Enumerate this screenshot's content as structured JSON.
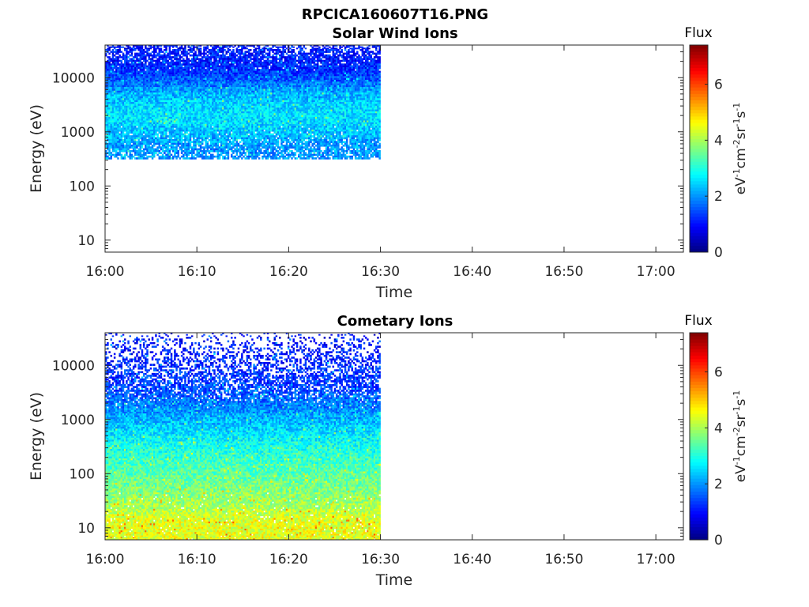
{
  "figure": {
    "title": "RPCICA160607T16.PNG"
  },
  "chart_data": [
    {
      "type": "heatmap",
      "title": "Solar Wind Ions",
      "xlabel": "Time",
      "ylabel": "Energy (eV)",
      "x_ticks": [
        "16:00",
        "16:10",
        "16:20",
        "16:30",
        "16:40",
        "16:50",
        "17:00"
      ],
      "y_ticks": [
        "10",
        "100",
        "1000",
        "10000"
      ],
      "y_tick_values": [
        10,
        100,
        1000,
        10000
      ],
      "xlim": [
        "16:00",
        "17:03"
      ],
      "ylim": [
        6,
        40000
      ],
      "yscale": "log",
      "data_time_range": [
        "16:00",
        "16:30"
      ],
      "colorbar": {
        "title": "Flux",
        "ticks": [
          "0",
          "2",
          "4",
          "6"
        ],
        "tick_values": [
          0,
          2,
          4,
          6
        ],
        "range": [
          0,
          7.4
        ],
        "colormap": "jet"
      },
      "rows": [
        {
          "energy_eV": 38000,
          "flux": 1.0,
          "fill": 0.6
        },
        {
          "energy_eV": 30000,
          "flux": 1.05,
          "fill": 0.7
        },
        {
          "energy_eV": 24000,
          "flux": 1.1,
          "fill": 0.82
        },
        {
          "energy_eV": 19000,
          "flux": 1.15,
          "fill": 0.9
        },
        {
          "energy_eV": 15000,
          "flux": 1.25,
          "fill": 0.96
        },
        {
          "energy_eV": 12000,
          "flux": 1.35,
          "fill": 1.0
        },
        {
          "energy_eV": 9500,
          "flux": 1.55,
          "fill": 1.0
        },
        {
          "energy_eV": 7500,
          "flux": 1.8,
          "fill": 1.0
        },
        {
          "energy_eV": 6000,
          "flux": 2.05,
          "fill": 1.0
        },
        {
          "energy_eV": 4700,
          "flux": 2.25,
          "fill": 1.0
        },
        {
          "energy_eV": 3700,
          "flux": 2.4,
          "fill": 1.0
        },
        {
          "energy_eV": 2900,
          "flux": 2.5,
          "fill": 1.0
        },
        {
          "energy_eV": 2300,
          "flux": 2.55,
          "fill": 1.0
        },
        {
          "energy_eV": 1800,
          "flux": 2.55,
          "fill": 1.0
        },
        {
          "energy_eV": 1450,
          "flux": 2.5,
          "fill": 1.0
        },
        {
          "energy_eV": 1150,
          "flux": 2.4,
          "fill": 0.97
        },
        {
          "energy_eV": 900,
          "flux": 2.3,
          "fill": 0.93
        },
        {
          "energy_eV": 700,
          "flux": 2.15,
          "fill": 0.88
        },
        {
          "energy_eV": 560,
          "flux": 2.05,
          "fill": 0.82
        },
        {
          "energy_eV": 440,
          "flux": 2.0,
          "fill": 0.76
        },
        {
          "energy_eV": 350,
          "flux": 2.0,
          "fill": 0.72
        }
      ]
    },
    {
      "type": "heatmap",
      "title": "Cometary Ions",
      "xlabel": "Time",
      "ylabel": "Energy (eV)",
      "x_ticks": [
        "16:00",
        "16:10",
        "16:20",
        "16:30",
        "16:40",
        "16:50",
        "17:00"
      ],
      "y_ticks": [
        "10",
        "100",
        "1000",
        "10000"
      ],
      "y_tick_values": [
        10,
        100,
        1000,
        10000
      ],
      "xlim": [
        "16:00",
        "17:03"
      ],
      "ylim": [
        6,
        40000
      ],
      "yscale": "log",
      "data_time_range": [
        "16:00",
        "16:30"
      ],
      "colorbar": {
        "title": "Flux",
        "ticks": [
          "0",
          "2",
          "4",
          "6"
        ],
        "tick_values": [
          0,
          2,
          4,
          6
        ],
        "range": [
          0,
          7.4
        ],
        "colormap": "jet"
      },
      "rows": [
        {
          "energy_eV": 38000,
          "flux": 1.0,
          "fill": 0.14
        },
        {
          "energy_eV": 30000,
          "flux": 1.0,
          "fill": 0.2
        },
        {
          "energy_eV": 24000,
          "flux": 1.05,
          "fill": 0.26
        },
        {
          "energy_eV": 19000,
          "flux": 1.05,
          "fill": 0.32
        },
        {
          "energy_eV": 15000,
          "flux": 1.1,
          "fill": 0.38
        },
        {
          "energy_eV": 12000,
          "flux": 1.15,
          "fill": 0.44
        },
        {
          "energy_eV": 9500,
          "flux": 1.2,
          "fill": 0.5
        },
        {
          "energy_eV": 7500,
          "flux": 1.25,
          "fill": 0.55
        },
        {
          "energy_eV": 6000,
          "flux": 1.3,
          "fill": 0.6
        },
        {
          "energy_eV": 4700,
          "flux": 1.35,
          "fill": 0.65
        },
        {
          "energy_eV": 3700,
          "flux": 1.45,
          "fill": 0.72
        },
        {
          "energy_eV": 2900,
          "flux": 1.55,
          "fill": 0.8
        },
        {
          "energy_eV": 2300,
          "flux": 1.7,
          "fill": 0.88
        },
        {
          "energy_eV": 1800,
          "flux": 1.85,
          "fill": 0.95
        },
        {
          "energy_eV": 1450,
          "flux": 2.0,
          "fill": 1.0
        },
        {
          "energy_eV": 1150,
          "flux": 2.15,
          "fill": 1.0
        },
        {
          "energy_eV": 900,
          "flux": 2.3,
          "fill": 1.0
        },
        {
          "energy_eV": 700,
          "flux": 2.45,
          "fill": 1.0
        },
        {
          "energy_eV": 560,
          "flux": 2.6,
          "fill": 1.0
        },
        {
          "energy_eV": 440,
          "flux": 2.75,
          "fill": 1.0
        },
        {
          "energy_eV": 350,
          "flux": 2.9,
          "fill": 1.0
        },
        {
          "energy_eV": 275,
          "flux": 3.0,
          "fill": 1.0
        },
        {
          "energy_eV": 215,
          "flux": 3.1,
          "fill": 1.0
        },
        {
          "energy_eV": 170,
          "flux": 3.2,
          "fill": 1.0
        },
        {
          "energy_eV": 135,
          "flux": 3.3,
          "fill": 1.0
        },
        {
          "energy_eV": 105,
          "flux": 3.4,
          "fill": 1.0
        },
        {
          "energy_eV": 83,
          "flux": 3.5,
          "fill": 1.0
        },
        {
          "energy_eV": 65,
          "flux": 3.6,
          "fill": 1.0
        },
        {
          "energy_eV": 51,
          "flux": 3.7,
          "fill": 1.0
        },
        {
          "energy_eV": 40,
          "flux": 3.8,
          "fill": 0.98
        },
        {
          "energy_eV": 32,
          "flux": 3.9,
          "fill": 0.98
        },
        {
          "energy_eV": 25,
          "flux": 4.0,
          "fill": 0.97
        },
        {
          "energy_eV": 20,
          "flux": 4.15,
          "fill": 0.97
        },
        {
          "energy_eV": 16,
          "flux": 4.3,
          "fill": 0.96
        },
        {
          "energy_eV": 12.5,
          "flux": 4.4,
          "fill": 0.96
        },
        {
          "energy_eV": 10,
          "flux": 4.45,
          "fill": 0.96
        },
        {
          "energy_eV": 8,
          "flux": 4.45,
          "fill": 0.95
        },
        {
          "energy_eV": 6.5,
          "flux": 4.4,
          "fill": 0.95
        }
      ]
    }
  ]
}
